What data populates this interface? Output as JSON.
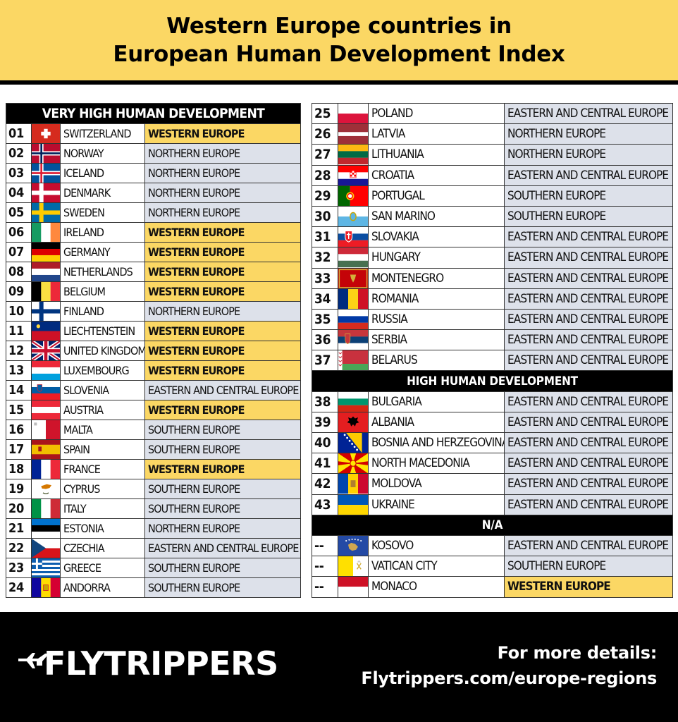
{
  "header": {
    "title_line1": "Western Europe countries in",
    "title_line2": "European Human Development Index"
  },
  "colors": {
    "western": "#fbd764",
    "other": "#dde1ea",
    "dark": "#000000"
  },
  "sections": {
    "very_high": "VERY HIGH HUMAN DEVELOPMENT",
    "high": "HIGH HUMAN DEVELOPMENT",
    "na": "N/A"
  },
  "left_rows": [
    {
      "rank": "01",
      "country": "SWITZERLAND",
      "region": "WESTERN EUROPE",
      "flag": "switzerland-flag"
    },
    {
      "rank": "02",
      "country": "NORWAY",
      "region": "NORTHERN EUROPE",
      "flag": "norway-flag"
    },
    {
      "rank": "03",
      "country": "ICELAND",
      "region": "NORTHERN EUROPE",
      "flag": "iceland-flag"
    },
    {
      "rank": "04",
      "country": "DENMARK",
      "region": "NORTHERN EUROPE",
      "flag": "denmark-flag"
    },
    {
      "rank": "05",
      "country": "SWEDEN",
      "region": "NORTHERN EUROPE",
      "flag": "sweden-flag"
    },
    {
      "rank": "06",
      "country": "IRELAND",
      "region": "WESTERN EUROPE",
      "flag": "ireland-flag"
    },
    {
      "rank": "07",
      "country": "GERMANY",
      "region": "WESTERN EUROPE",
      "flag": "germany-flag"
    },
    {
      "rank": "08",
      "country": "NETHERLANDS",
      "region": "WESTERN EUROPE",
      "flag": "netherlands-flag"
    },
    {
      "rank": "09",
      "country": "BELGIUM",
      "region": "WESTERN EUROPE",
      "flag": "belgium-flag"
    },
    {
      "rank": "10",
      "country": "FINLAND",
      "region": "NORTHERN EUROPE",
      "flag": "finland-flag"
    },
    {
      "rank": "11",
      "country": "LIECHTENSTEIN",
      "region": "WESTERN EUROPE",
      "flag": "liechtenstein-flag"
    },
    {
      "rank": "12",
      "country": "UNITED KINGDOM",
      "region": "WESTERN EUROPE",
      "flag": "united-kingdom-flag"
    },
    {
      "rank": "13",
      "country": "LUXEMBOURG",
      "region": "WESTERN EUROPE",
      "flag": "luxembourg-flag"
    },
    {
      "rank": "14",
      "country": "SLOVENIA",
      "region": "EASTERN AND CENTRAL EUROPE",
      "flag": "slovenia-flag"
    },
    {
      "rank": "15",
      "country": "AUSTRIA",
      "region": "WESTERN EUROPE",
      "flag": "austria-flag"
    },
    {
      "rank": "16",
      "country": "MALTA",
      "region": "SOUTHERN EUROPE",
      "flag": "malta-flag"
    },
    {
      "rank": "17",
      "country": "SPAIN",
      "region": "SOUTHERN EUROPE",
      "flag": "spain-flag"
    },
    {
      "rank": "18",
      "country": "FRANCE",
      "region": "WESTERN EUROPE",
      "flag": "france-flag"
    },
    {
      "rank": "19",
      "country": "CYPRUS",
      "region": "SOUTHERN EUROPE",
      "flag": "cyprus-flag"
    },
    {
      "rank": "20",
      "country": "ITALY",
      "region": "SOUTHERN EUROPE",
      "flag": "italy-flag"
    },
    {
      "rank": "21",
      "country": "ESTONIA",
      "region": "NORTHERN EUROPE",
      "flag": "estonia-flag"
    },
    {
      "rank": "22",
      "country": "CZECHIA",
      "region": "EASTERN AND CENTRAL EUROPE",
      "flag": "czechia-flag"
    },
    {
      "rank": "23",
      "country": "GREECE",
      "region": "SOUTHERN EUROPE",
      "flag": "greece-flag"
    },
    {
      "rank": "24",
      "country": "ANDORRA",
      "region": "SOUTHERN EUROPE",
      "flag": "andorra-flag"
    }
  ],
  "right_very_high": [
    {
      "rank": "25",
      "country": "POLAND",
      "region": "EASTERN AND CENTRAL EUROPE",
      "flag": "poland-flag"
    },
    {
      "rank": "26",
      "country": "LATVIA",
      "region": "NORTHERN EUROPE",
      "flag": "latvia-flag"
    },
    {
      "rank": "27",
      "country": "LITHUANIA",
      "region": "NORTHERN EUROPE",
      "flag": "lithuania-flag"
    },
    {
      "rank": "28",
      "country": "CROATIA",
      "region": "EASTERN AND CENTRAL EUROPE",
      "flag": "croatia-flag"
    },
    {
      "rank": "29",
      "country": "PORTUGAL",
      "region": "SOUTHERN EUROPE",
      "flag": "portugal-flag"
    },
    {
      "rank": "30",
      "country": "SAN MARINO",
      "region": "SOUTHERN EUROPE",
      "flag": "san-marino-flag"
    },
    {
      "rank": "31",
      "country": "SLOVAKIA",
      "region": "EASTERN AND CENTRAL EUROPE",
      "flag": "slovakia-flag"
    },
    {
      "rank": "32",
      "country": "HUNGARY",
      "region": "EASTERN AND CENTRAL EUROPE",
      "flag": "hungary-flag"
    },
    {
      "rank": "33",
      "country": "MONTENEGRO",
      "region": "EASTERN AND CENTRAL EUROPE",
      "flag": "montenegro-flag"
    },
    {
      "rank": "34",
      "country": "ROMANIA",
      "region": "EASTERN AND CENTRAL EUROPE",
      "flag": "romania-flag"
    },
    {
      "rank": "35",
      "country": "RUSSIA",
      "region": "EASTERN AND CENTRAL EUROPE",
      "flag": "russia-flag"
    },
    {
      "rank": "36",
      "country": "SERBIA",
      "region": "EASTERN AND CENTRAL EUROPE",
      "flag": "serbia-flag"
    },
    {
      "rank": "37",
      "country": "BELARUS",
      "region": "EASTERN AND CENTRAL EUROPE",
      "flag": "belarus-flag"
    }
  ],
  "right_high": [
    {
      "rank": "38",
      "country": "BULGARIA",
      "region": "EASTERN AND CENTRAL EUROPE",
      "flag": "bulgaria-flag"
    },
    {
      "rank": "39",
      "country": "ALBANIA",
      "region": "EASTERN AND CENTRAL EUROPE",
      "flag": "albania-flag"
    },
    {
      "rank": "40",
      "country": "BOSNIA AND HERZEGOVINA",
      "region": "EASTERN AND CENTRAL EUROPE",
      "flag": "bosnia-flag"
    },
    {
      "rank": "41",
      "country": "NORTH MACEDONIA",
      "region": "EASTERN AND CENTRAL EUROPE",
      "flag": "north-macedonia-flag"
    },
    {
      "rank": "42",
      "country": "MOLDOVA",
      "region": "EASTERN AND CENTRAL EUROPE",
      "flag": "moldova-flag"
    },
    {
      "rank": "43",
      "country": "UKRAINE",
      "region": "EASTERN AND CENTRAL EUROPE",
      "flag": "ukraine-flag"
    }
  ],
  "right_na": [
    {
      "rank": "--",
      "country": "KOSOVO",
      "region": "EASTERN AND CENTRAL EUROPE",
      "flag": "kosovo-flag"
    },
    {
      "rank": "--",
      "country": "VATICAN CITY",
      "region": "SOUTHERN EUROPE",
      "flag": "vatican-flag"
    },
    {
      "rank": "--",
      "country": "MONACO",
      "region": "WESTERN EUROPE",
      "flag": "monaco-flag"
    }
  ],
  "footer": {
    "brand": "FLYTRIPPERS",
    "details_line1": "For more details:",
    "details_line2": "Flytrippers.com/europe-regions"
  }
}
